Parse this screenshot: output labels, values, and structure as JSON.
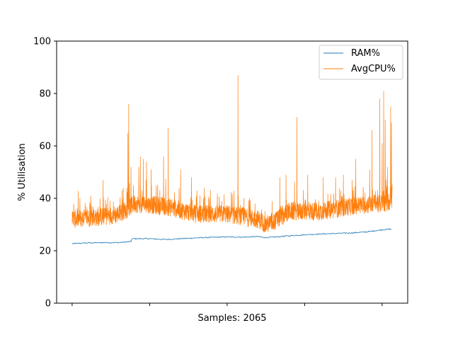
{
  "chart_data": {
    "type": "line",
    "title": "",
    "xlabel": "Samples: 2065",
    "ylabel": "% Utilisation",
    "xlim": [
      -100,
      2165
    ],
    "ylim": [
      0,
      100
    ],
    "yticks": [
      "0",
      "20",
      "40",
      "60",
      "80",
      "100"
    ],
    "xtick_count": 5,
    "grid": false,
    "legend": "top-right",
    "series": [
      {
        "name": "RAM%",
        "color": "#1f77b4",
        "points": [
          [
            0,
            22.7
          ],
          [
            100,
            23.0
          ],
          [
            200,
            23.1
          ],
          [
            300,
            23.1
          ],
          [
            380,
            23.5
          ],
          [
            385,
            24.5
          ],
          [
            400,
            24.6
          ],
          [
            500,
            24.6
          ],
          [
            600,
            24.3
          ],
          [
            700,
            24.6
          ],
          [
            800,
            24.9
          ],
          [
            900,
            25.1
          ],
          [
            1000,
            25.3
          ],
          [
            1100,
            25.2
          ],
          [
            1200,
            25.4
          ],
          [
            1250,
            25.0
          ],
          [
            1300,
            25.2
          ],
          [
            1400,
            25.7
          ],
          [
            1500,
            26.1
          ],
          [
            1600,
            26.4
          ],
          [
            1700,
            26.6
          ],
          [
            1800,
            26.8
          ],
          [
            1900,
            27.2
          ],
          [
            1950,
            27.6
          ],
          [
            2000,
            28.0
          ],
          [
            2060,
            28.3
          ]
        ]
      },
      {
        "name": "AvgCPU%",
        "color": "#ff7f0e",
        "baseline": [
          [
            0,
            32
          ],
          [
            200,
            33
          ],
          [
            300,
            34
          ],
          [
            360,
            36
          ],
          [
            400,
            38
          ],
          [
            600,
            37
          ],
          [
            800,
            34
          ],
          [
            1000,
            34
          ],
          [
            1200,
            32
          ],
          [
            1250,
            30
          ],
          [
            1300,
            31
          ],
          [
            1400,
            35
          ],
          [
            1600,
            35
          ],
          [
            1800,
            37
          ],
          [
            1950,
            38
          ],
          [
            2000,
            38
          ],
          [
            2065,
            39
          ]
        ],
        "spikes": [
          [
            10,
            38
          ],
          [
            50,
            40
          ],
          [
            120,
            41
          ],
          [
            200,
            47
          ],
          [
            330,
            44
          ],
          [
            360,
            65
          ],
          [
            365,
            76
          ],
          [
            380,
            52
          ],
          [
            395,
            45
          ],
          [
            430,
            52
          ],
          [
            440,
            56
          ],
          [
            460,
            55
          ],
          [
            480,
            54
          ],
          [
            510,
            51
          ],
          [
            590,
            56
          ],
          [
            620,
            67
          ],
          [
            700,
            51
          ],
          [
            770,
            48
          ],
          [
            1070,
            87
          ],
          [
            1180,
            38
          ],
          [
            1290,
            39
          ],
          [
            1340,
            48
          ],
          [
            1380,
            49
          ],
          [
            1450,
            71
          ],
          [
            1520,
            49
          ],
          [
            1620,
            48
          ],
          [
            1700,
            48
          ],
          [
            1750,
            49
          ],
          [
            1830,
            55
          ],
          [
            1920,
            51
          ],
          [
            1935,
            66
          ],
          [
            1985,
            78
          ],
          [
            2000,
            61
          ],
          [
            2010,
            81
          ],
          [
            2020,
            70
          ],
          [
            2035,
            52
          ],
          [
            2055,
            75
          ],
          [
            2060,
            69
          ]
        ]
      }
    ]
  }
}
